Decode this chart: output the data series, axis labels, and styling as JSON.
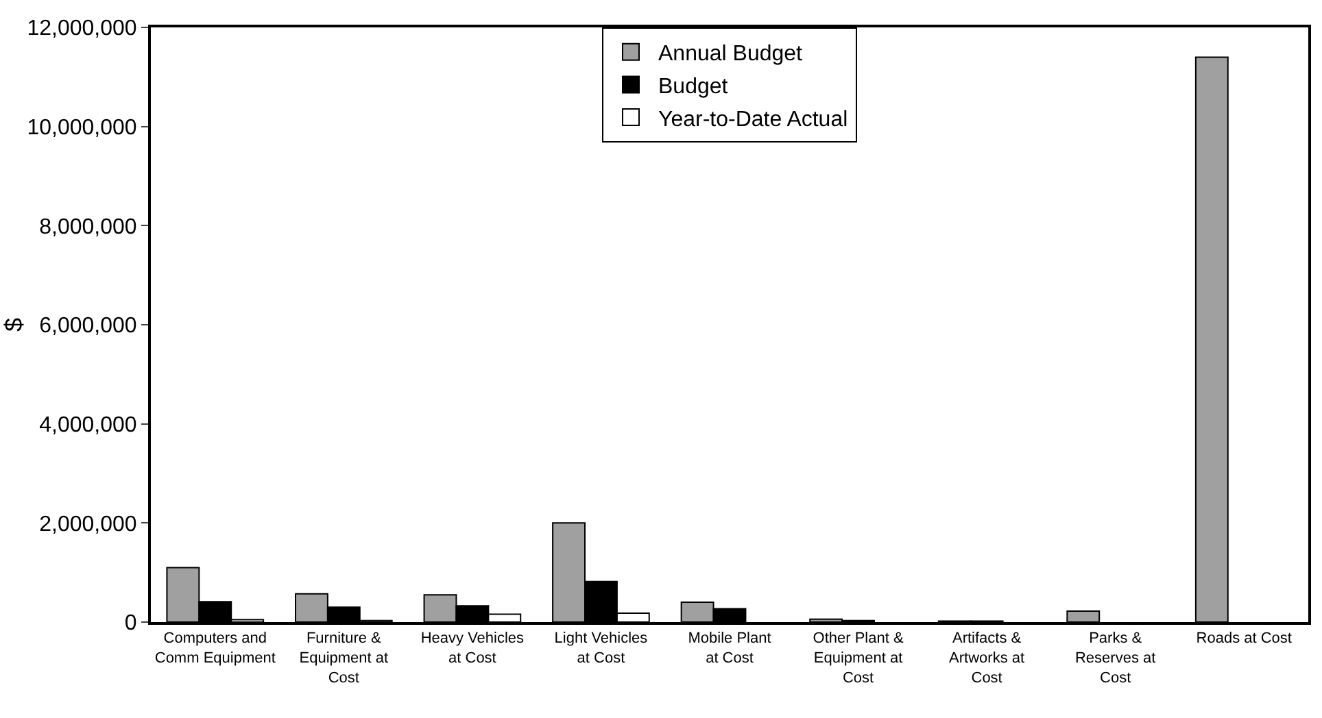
{
  "chart_data": {
    "type": "bar",
    "ylabel": "$",
    "categories": [
      "Computers and Comm Equipment",
      "Furniture & Equipment at Cost",
      "Heavy Vehicles at Cost",
      "Light Vehicles at Cost",
      "Mobile Plant at Cost",
      "Other Plant & Equipment at Cost",
      "Artifacts & Artworks at Cost",
      "Parks & Reserves at Cost",
      "Roads at Cost"
    ],
    "series": [
      {
        "name": "Annual Budget",
        "color": "#a0a0a0",
        "values": [
          1100000,
          570000,
          550000,
          2000000,
          400000,
          60000,
          20000,
          220000,
          11400000
        ]
      },
      {
        "name": "Budget",
        "color": "#000000",
        "values": [
          410000,
          300000,
          330000,
          820000,
          270000,
          30000,
          20000,
          0,
          0
        ]
      },
      {
        "name": "Year-to-Date Actual",
        "color": "#ffffff",
        "values": [
          50000,
          30000,
          160000,
          180000,
          0,
          0,
          0,
          0,
          0
        ]
      }
    ],
    "ylim": [
      0,
      12000000
    ],
    "yticks": [
      {
        "value": 0,
        "label": "0"
      },
      {
        "value": 2000000,
        "label": "2,000,000"
      },
      {
        "value": 4000000,
        "label": "4,000,000"
      },
      {
        "value": 6000000,
        "label": "6,000,000"
      },
      {
        "value": 8000000,
        "label": "8,000,000"
      },
      {
        "value": 10000000,
        "label": "10,000,000"
      },
      {
        "value": 12000000,
        "label": "12,000,000"
      }
    ],
    "grid": false,
    "legend": "top"
  }
}
